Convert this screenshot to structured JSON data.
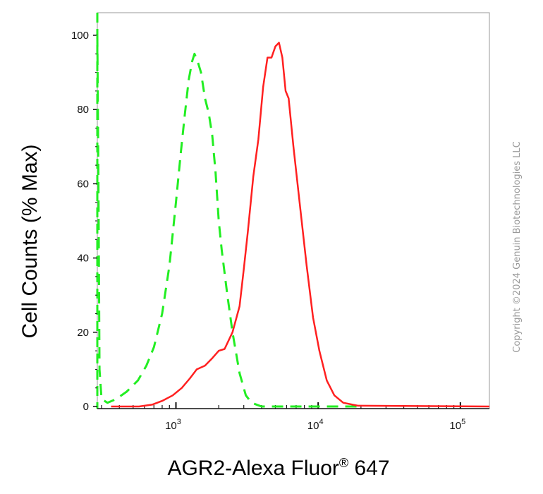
{
  "chart_data": {
    "type": "line",
    "title": "",
    "xlabel": "AGR2-Alexa Fluor",
    "xlabel_superscript": "®",
    "xlabel_suffix": " 647",
    "ylabel": "Cell Counts (% Max)",
    "x_scale": "log",
    "xlim": [
      280,
      160000
    ],
    "ylim": [
      0,
      100
    ],
    "y_ticks": [
      0,
      20,
      40,
      60,
      80,
      100
    ],
    "y_tick_labels": [
      "0",
      "20",
      "40",
      "60",
      "80",
      "100"
    ],
    "x_major_ticks": [
      1000,
      10000,
      100000
    ],
    "x_tick_labels": [
      {
        "base": "10",
        "exp": "3"
      },
      {
        "base": "10",
        "exp": "4"
      },
      {
        "base": "10",
        "exp": "5"
      }
    ],
    "grid": false,
    "legend": "none",
    "series": [
      {
        "color": "#22ee22",
        "style": "dashed",
        "points": [
          [
            280,
            100
          ],
          [
            285,
            60
          ],
          [
            290,
            10
          ],
          [
            300,
            2
          ],
          [
            330,
            1
          ],
          [
            380,
            2
          ],
          [
            450,
            4
          ],
          [
            540,
            7
          ],
          [
            620,
            11
          ],
          [
            700,
            16
          ],
          [
            800,
            25
          ],
          [
            900,
            38
          ],
          [
            1000,
            55
          ],
          [
            1080,
            68
          ],
          [
            1150,
            78
          ],
          [
            1230,
            88
          ],
          [
            1300,
            93
          ],
          [
            1350,
            95
          ],
          [
            1420,
            93
          ],
          [
            1500,
            90
          ],
          [
            1600,
            83
          ],
          [
            1700,
            79
          ],
          [
            1800,
            73
          ],
          [
            1900,
            63
          ],
          [
            2000,
            50
          ],
          [
            2100,
            42
          ],
          [
            2300,
            30
          ],
          [
            2500,
            20
          ],
          [
            2800,
            9
          ],
          [
            3100,
            3
          ],
          [
            3400,
            1
          ],
          [
            4000,
            0
          ],
          [
            10000,
            0
          ],
          [
            20000,
            0
          ]
        ]
      },
      {
        "color": "#ff2020",
        "style": "solid",
        "points": [
          [
            350,
            0
          ],
          [
            550,
            0
          ],
          [
            680,
            0.5
          ],
          [
            800,
            1.5
          ],
          [
            950,
            3
          ],
          [
            1100,
            5
          ],
          [
            1250,
            7.5
          ],
          [
            1400,
            10
          ],
          [
            1600,
            11
          ],
          [
            1800,
            13
          ],
          [
            2000,
            15
          ],
          [
            2200,
            15.5
          ],
          [
            2500,
            20
          ],
          [
            2800,
            27
          ],
          [
            3000,
            37
          ],
          [
            3200,
            47
          ],
          [
            3500,
            62
          ],
          [
            3800,
            72
          ],
          [
            4100,
            86
          ],
          [
            4400,
            94
          ],
          [
            4700,
            94
          ],
          [
            5000,
            97
          ],
          [
            5300,
            98
          ],
          [
            5600,
            94
          ],
          [
            5900,
            85
          ],
          [
            6200,
            83
          ],
          [
            6700,
            70
          ],
          [
            7500,
            53
          ],
          [
            8300,
            38
          ],
          [
            9200,
            24
          ],
          [
            10200,
            15
          ],
          [
            11500,
            7
          ],
          [
            13000,
            3
          ],
          [
            15000,
            1
          ],
          [
            19000,
            0.2
          ],
          [
            160000,
            0
          ]
        ]
      }
    ]
  },
  "copyright": "Copyright ©2024 Genuin Biotechnologies LLC",
  "colors": {
    "axis": "#111111",
    "left_axis_accent": "#22ee22",
    "background": "#ffffff"
  }
}
